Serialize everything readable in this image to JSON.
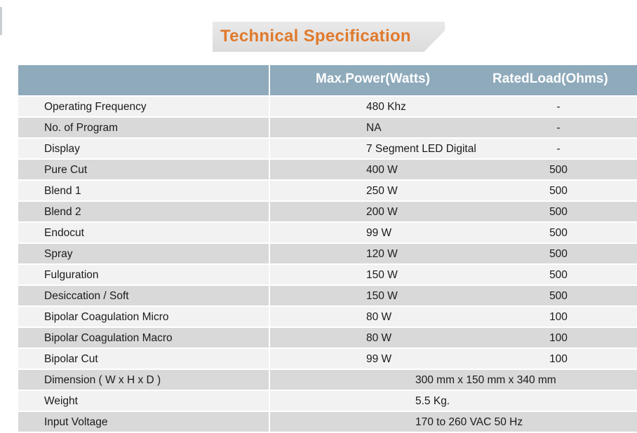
{
  "title": "Technical Specification",
  "table": {
    "header": {
      "col1": "",
      "col2": "Max.Power(Watts)",
      "col3": "RatedLoad(Ohms)"
    },
    "rows": [
      {
        "label": "Operating Frequency",
        "power": "480 Khz",
        "load": "-"
      },
      {
        "label": "No. of Program",
        "power": "NA",
        "load": "-"
      },
      {
        "label": "Display",
        "power": "7 Segment LED Digital",
        "load": "-"
      },
      {
        "label": "Pure Cut",
        "power": "400 W",
        "load": "500"
      },
      {
        "label": "Blend 1",
        "power": "250 W",
        "load": "500"
      },
      {
        "label": "Blend 2",
        "power": "200 W",
        "load": "500"
      },
      {
        "label": "Endocut",
        "power": "99 W",
        "load": "500"
      },
      {
        "label": "Spray",
        "power": "120 W",
        "load": "500"
      },
      {
        "label": "Fulguration",
        "power": "150 W",
        "load": "500"
      },
      {
        "label": "Desiccation / Soft",
        "power": "150 W",
        "load": "500"
      },
      {
        "label": "Bipolar Coagulation Micro",
        "power": "80 W",
        "load": "100"
      },
      {
        "label": "Bipolar Coagulation Macro",
        "power": "80 W",
        "load": "100"
      },
      {
        "label": "Bipolar Cut",
        "power": "99 W",
        "load": "100"
      }
    ],
    "span_rows": [
      {
        "label": "Dimension ( W x H x D )",
        "value": "300 mm x 150 mm x 340 mm"
      },
      {
        "label": "Weight",
        "value": "5.5 Kg."
      },
      {
        "label": "Input Voltage",
        "value": "170 to 260 VAC 50 Hz"
      }
    ]
  },
  "colors": {
    "title": "#e07a2c",
    "header_bg": "#8eaabb",
    "row_light": "#f2f2f2",
    "row_dark": "#d9d9d9"
  }
}
